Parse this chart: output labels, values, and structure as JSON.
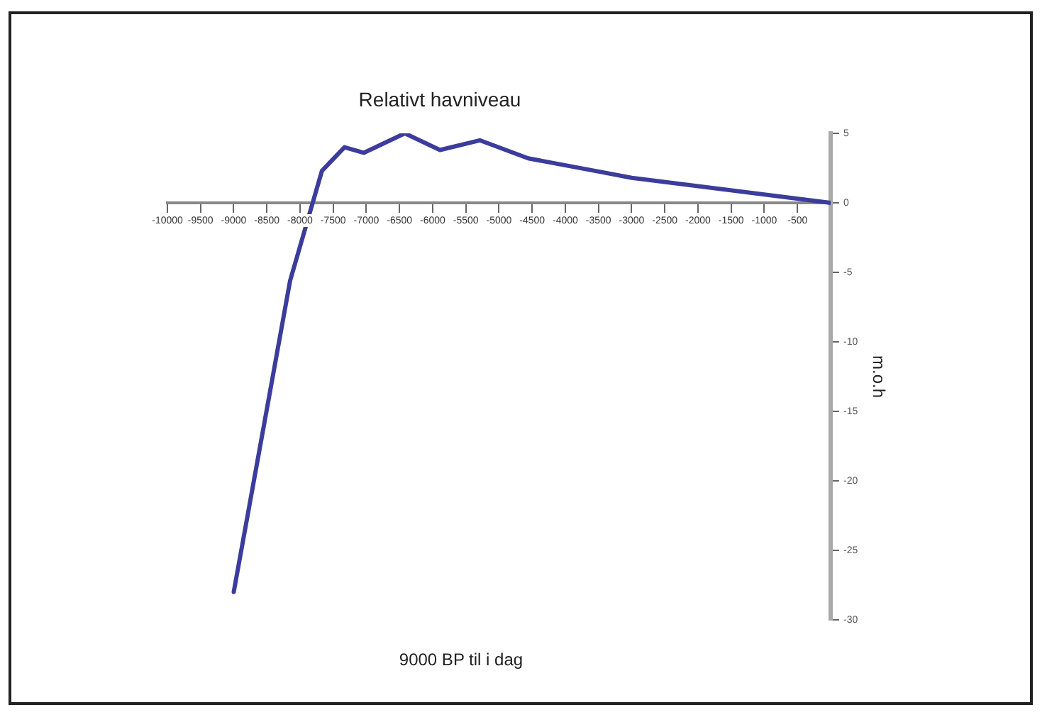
{
  "chart_data": {
    "type": "line",
    "title": "Relativt havniveau",
    "xlabel": "9000 BP til i dag",
    "ylabel": "m.o.h",
    "x": [
      -9000,
      -8150,
      -7670,
      -7330,
      -7040,
      -6420,
      -5890,
      -5290,
      -4560,
      -3440,
      -3000,
      0
    ],
    "series": [
      {
        "color": "#3c3c9c",
        "values": [
          -28,
          -5.6,
          2.3,
          4,
          3.6,
          5,
          3.8,
          4.5,
          3.2,
          2.2,
          1.8,
          0
        ]
      }
    ],
    "xlim": [
      -10000,
      0
    ],
    "xticks": [
      -10000,
      -9500,
      -9000,
      -8500,
      -8000,
      -7500,
      -7000,
      -6500,
      -6000,
      -5500,
      -5000,
      -4500,
      -4000,
      -3500,
      -3000,
      -2500,
      -2000,
      -1500,
      -1000,
      -500
    ],
    "ylim": [
      -30,
      5
    ],
    "yticks": [
      -30,
      -25,
      -20,
      -15,
      -10,
      -5,
      0,
      5
    ],
    "grid": false,
    "legend": false,
    "marker": "none",
    "line_style": "solid"
  }
}
